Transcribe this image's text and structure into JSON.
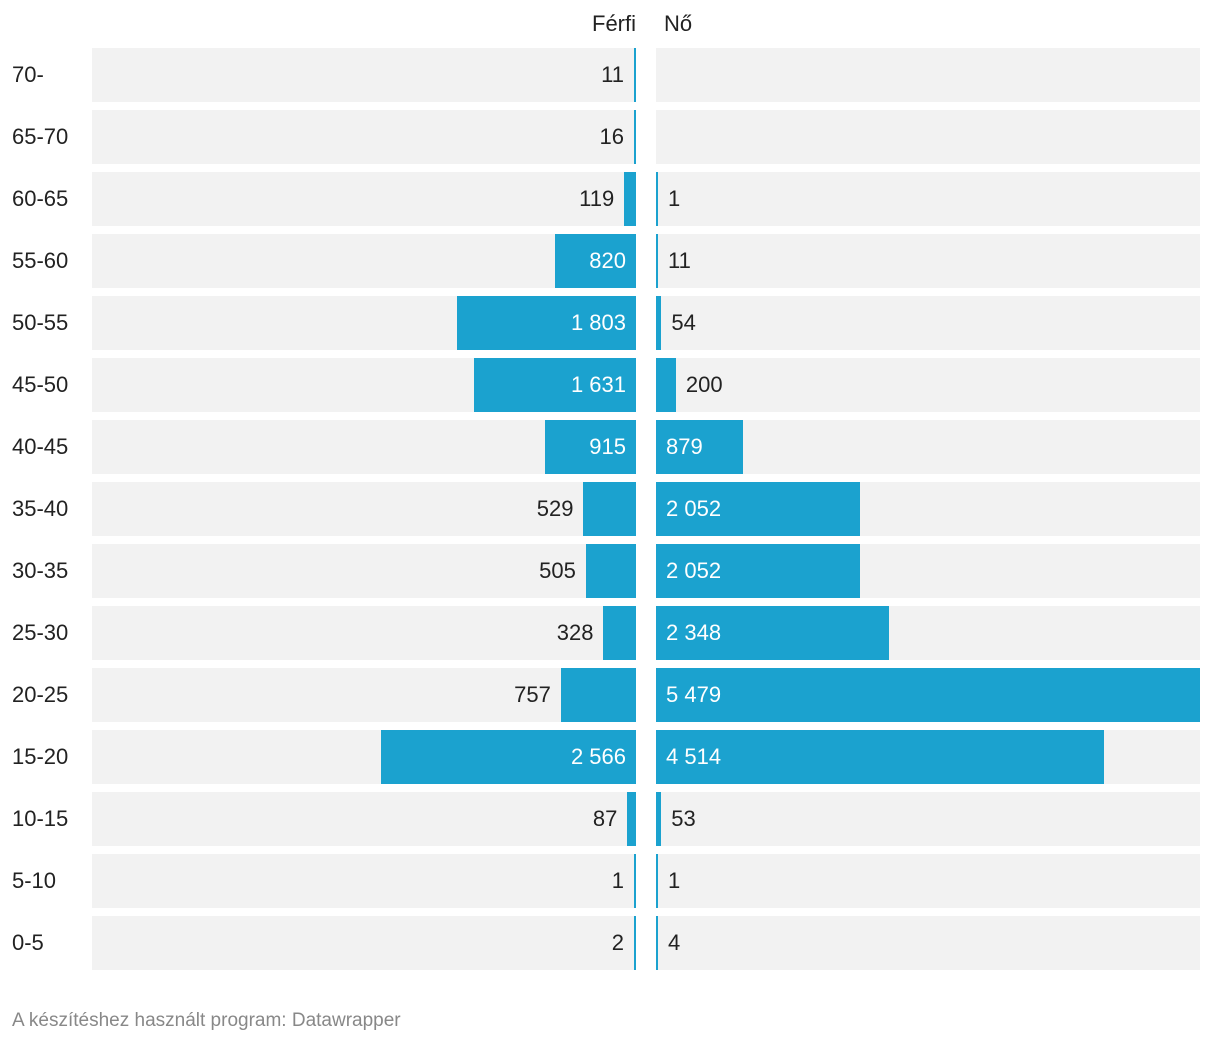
{
  "chart_data": {
    "type": "bar",
    "orientation": "horizontal-diverging",
    "categories": [
      "70-",
      "65-70",
      "60-65",
      "55-60",
      "50-55",
      "45-50",
      "40-45",
      "35-40",
      "30-35",
      "25-30",
      "20-25",
      "15-20",
      "10-15",
      "5-10",
      "0-5"
    ],
    "series": [
      {
        "name": "Férfi",
        "values": [
          11,
          16,
          119,
          820,
          1803,
          1631,
          915,
          529,
          505,
          328,
          757,
          2566,
          87,
          1,
          2
        ],
        "labels": [
          "11",
          "16",
          "119",
          "820",
          "1 803",
          "1 631",
          "915",
          "529",
          "505",
          "328",
          "757",
          "2 566",
          "87",
          "1",
          "2"
        ]
      },
      {
        "name": "Nő",
        "values": [
          null,
          null,
          1,
          11,
          54,
          200,
          879,
          2052,
          2052,
          2348,
          5479,
          4514,
          53,
          1,
          4
        ],
        "labels": [
          "",
          "",
          "1",
          "11",
          "54",
          "200",
          "879",
          "2 052",
          "2 052",
          "2 348",
          "5 479",
          "4 514",
          "53",
          "1",
          "4"
        ]
      }
    ],
    "xlim": [
      0,
      5479
    ],
    "grid": false,
    "legend": "top"
  },
  "colors": {
    "bar": "#1ba2cf",
    "track": "#f2f2f2",
    "label_dark": "#222222",
    "label_light": "#ffffff",
    "footer": "#888888"
  },
  "legend": {
    "left": "Férfi",
    "right": "Nő"
  },
  "footer": "A készítéshez használt program: Datawrapper"
}
